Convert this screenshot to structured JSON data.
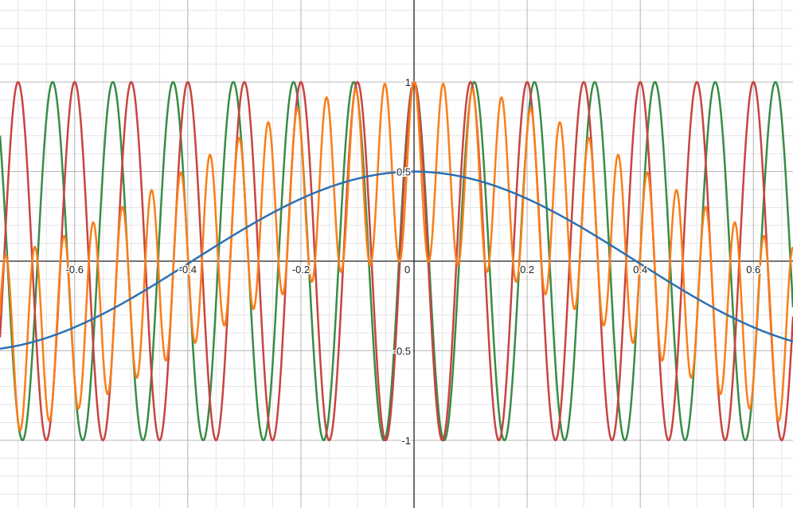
{
  "chart_data": {
    "type": "line",
    "title": "",
    "xlabel": "",
    "ylabel": "",
    "xlim": [
      -0.732,
      0.67
    ],
    "ylim": [
      -1.378,
      1.458
    ],
    "grid": true,
    "x_ticks": [
      "-0.6",
      "-0.4",
      "-0.2",
      "0",
      "0.2",
      "0.4",
      "0.6"
    ],
    "x_tick_values": [
      -0.6,
      -0.4,
      -0.2,
      0,
      0.2,
      0.4,
      0.6
    ],
    "y_ticks": [
      "1",
      "0.5",
      "-0.5",
      "-1"
    ],
    "y_tick_values": [
      1,
      0.5,
      -0.5,
      -1
    ],
    "series": [
      {
        "expression": "0.5*cos(4x)",
        "color": "#2d70b3"
      },
      {
        "expression": "cos(62.83x)",
        "color": "#c74440"
      },
      {
        "expression": "cos(59x)",
        "color": "#388c46"
      },
      {
        "expression": "cos(62.83x)*cos(59x)",
        "color": "#fa7e19"
      }
    ]
  }
}
